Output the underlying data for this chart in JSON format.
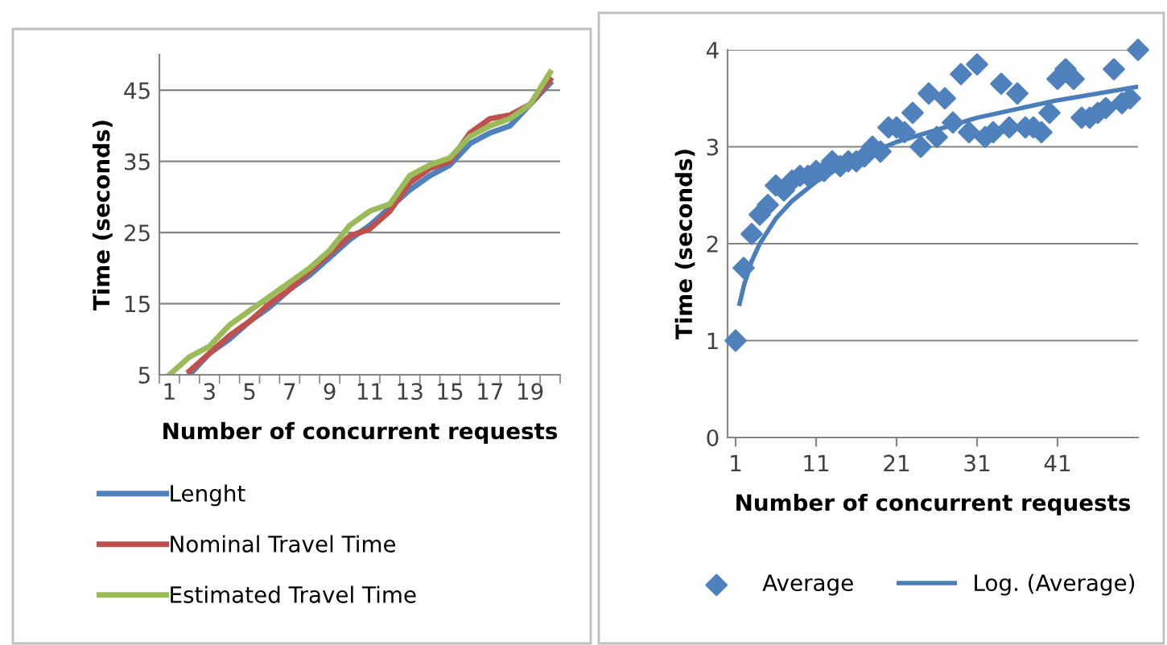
{
  "chart_data": [
    {
      "type": "line",
      "xlabel": "Number of concurrent requests",
      "ylabel": "Time (seconds)",
      "categories": [
        "1",
        null,
        "3",
        null,
        "5",
        null,
        "7",
        null,
        "9",
        null,
        "11",
        null,
        "13",
        null,
        "15",
        null,
        "17",
        null,
        "19",
        null
      ],
      "series": [
        {
          "name": "Lenght",
          "color": "#4f81bd",
          "values": [
            null,
            5,
            8,
            10,
            12.5,
            14.5,
            17,
            19,
            21.5,
            24,
            26,
            28.5,
            31,
            33,
            34.5,
            37.5,
            39,
            40,
            43,
            46
          ]
        },
        {
          "name": "Nominal Travel Time",
          "color": "#c0504d",
          "values": [
            null,
            5.5,
            8,
            10.5,
            12.5,
            15,
            17,
            19.5,
            22,
            24.5,
            25.5,
            28,
            32,
            34,
            35,
            39,
            41,
            41.5,
            43,
            46.5
          ]
        },
        {
          "name": "Estimated Travel Time",
          "color": "#9bbb59",
          "values": [
            5,
            7.5,
            9,
            12,
            14,
            16,
            18,
            20,
            22.5,
            26,
            28,
            29,
            33,
            34.5,
            35.5,
            38.5,
            40,
            41,
            43,
            47.5
          ]
        }
      ],
      "ylim": [
        5,
        50
      ],
      "yticks": [
        5,
        15,
        25,
        35,
        45
      ],
      "grid": "y",
      "legend": "bottom",
      "marker": "none",
      "line_style": "solid"
    },
    {
      "type": "scatter",
      "xlabel": "Number of concurrent requests",
      "ylabel": "Time (seconds)",
      "series": [
        {
          "name": "Average",
          "type": "scatter",
          "color": "#4f81bd",
          "marker": "diamond",
          "x": [
            1,
            2,
            3,
            4,
            5,
            6,
            7,
            8,
            9,
            10,
            11,
            12,
            13,
            14,
            15,
            16,
            17,
            18,
            19,
            20,
            21,
            22,
            23,
            24,
            25,
            26,
            27,
            28,
            29,
            30,
            31,
            32,
            33,
            34,
            35,
            36,
            37,
            38,
            39,
            40,
            41,
            42,
            43,
            44,
            45,
            46,
            47,
            48,
            49,
            50,
            51
          ],
          "values": [
            1.0,
            1.75,
            2.1,
            2.3,
            2.4,
            2.6,
            2.55,
            2.65,
            2.7,
            2.7,
            2.75,
            2.75,
            2.85,
            2.8,
            2.85,
            2.85,
            2.9,
            3.0,
            2.95,
            3.2,
            3.2,
            3.15,
            3.35,
            3.0,
            3.55,
            3.1,
            3.5,
            3.25,
            3.75,
            3.15,
            3.85,
            3.1,
            3.15,
            3.65,
            3.2,
            3.55,
            3.2,
            3.2,
            3.15,
            3.35,
            3.7,
            3.8,
            3.7,
            3.3,
            3.3,
            3.35,
            3.4,
            3.8,
            3.45,
            3.5,
            4.0
          ]
        },
        {
          "name": "Log. (Average)",
          "type": "line",
          "color": "#4a7ebb",
          "marker": "none",
          "x": [
            1.5,
            2,
            3,
            4,
            6,
            8,
            11,
            15,
            21,
            31,
            41,
            51
          ],
          "values": [
            1.38,
            1.56,
            1.82,
            2.0,
            2.26,
            2.44,
            2.64,
            2.84,
            3.05,
            3.3,
            3.48,
            3.62
          ]
        }
      ],
      "xlim": [
        0,
        51
      ],
      "xticks": [
        1,
        11,
        21,
        31,
        41
      ],
      "ylim": [
        0,
        4
      ],
      "yticks": [
        0,
        1,
        2,
        3,
        4
      ],
      "grid": "y",
      "legend": "bottom"
    }
  ]
}
